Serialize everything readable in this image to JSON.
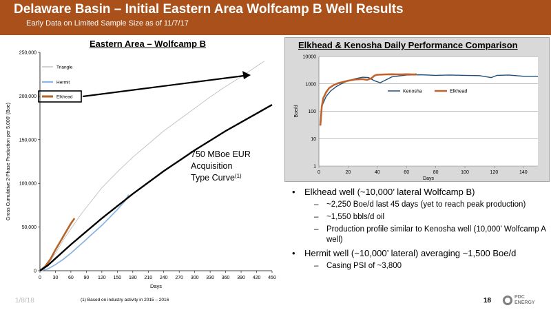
{
  "header": {
    "title": "Delaware Basin – Initial Eastern Area Wolfcamp B Well Results",
    "subtitle": "Early Data on Limited Sample Size as of 11/7/17"
  },
  "left_chart_title": "Eastern Area – Wolfcamp B",
  "right_chart_title": "Elkhead & Kenosha Daily Performance Comparison",
  "type_curve_label": {
    "line1": "750 MBoe EUR",
    "line2": "Acquisition",
    "line3": "Type Curve",
    "sup": "(1)"
  },
  "bullets": [
    {
      "text": "Elkhead well (~10,000’ lateral Wolfcamp B)",
      "sub": [
        "~2,250 Boe/d last 45 days (yet to reach peak production)",
        "~1,550 bbls/d oil",
        "Production profile similar to Kenosha well (10,000’ Wolfcamp A well)"
      ]
    },
    {
      "text": "Hermit well (~10,000’ lateral) averaging ~1,500 Boe/d",
      "sub": [
        "Casing PSI of ~3,800"
      ]
    }
  ],
  "footer": {
    "date": "1/8/18",
    "footnote": "(1)  Based on industry activity in 2015 – 2016",
    "page": "18",
    "logo_line1": "PDC",
    "logo_line2": "ENERGY"
  },
  "chart_data": [
    {
      "type": "line",
      "title": "Eastern Area – Wolfcamp B",
      "xlabel": "Days",
      "ylabel": "Gross Cumulative 2-Phase Production per 5,000’ (Boe)",
      "xlim": [
        0,
        450
      ],
      "ylim": [
        0,
        250000
      ],
      "xticks": [
        0,
        30,
        60,
        90,
        120,
        150,
        180,
        210,
        240,
        270,
        300,
        330,
        360,
        390,
        420,
        450
      ],
      "yticks": [
        0,
        50000,
        100000,
        150000,
        200000,
        250000
      ],
      "ytick_labels": [
        "0",
        "50,000",
        "100,000",
        "150,000",
        "200,000",
        "250,000"
      ],
      "legend": "top-left",
      "series": [
        {
          "name": "Triangle",
          "color": "#bfbfbf",
          "x": [
            0,
            15,
            30,
            45,
            60,
            80,
            100,
            120,
            150,
            180,
            210,
            240,
            270,
            300,
            330,
            360,
            390,
            420,
            435
          ],
          "y": [
            0,
            7000,
            20000,
            35000,
            48000,
            65000,
            80000,
            95000,
            113000,
            130000,
            145000,
            160000,
            173000,
            186000,
            199000,
            211000,
            222000,
            234000,
            240000
          ]
        },
        {
          "name": "Hermit",
          "color": "#8eb4e3",
          "x": [
            0,
            15,
            30,
            45,
            60,
            75,
            90,
            105,
            120,
            135,
            150,
            165,
            172
          ],
          "y": [
            0,
            2000,
            7000,
            13000,
            20000,
            28000,
            36000,
            44000,
            52000,
            61000,
            70000,
            80000,
            87000
          ]
        },
        {
          "name": "Elkhead",
          "color": "#b5652a",
          "x": [
            0,
            10,
            20,
            30,
            40,
            50,
            60,
            67
          ],
          "y": [
            0,
            5000,
            13000,
            24000,
            34000,
            44000,
            54000,
            60000
          ]
        },
        {
          "name": "750 MBoe EUR Acquisition Type Curve",
          "color": "#000000",
          "x": [
            0,
            15,
            30,
            45,
            60,
            90,
            120,
            150,
            180,
            210,
            240,
            270,
            300,
            330,
            360,
            390,
            420,
            450
          ],
          "y": [
            0,
            6000,
            14000,
            22000,
            30000,
            45000,
            60000,
            74000,
            88000,
            101000,
            114000,
            126000,
            138000,
            149000,
            160000,
            170000,
            180000,
            190000
          ]
        }
      ]
    },
    {
      "type": "line",
      "title": "Elkhead & Kenosha Daily Performance Comparison",
      "xlabel": "Days",
      "ylabel": "Boe/d",
      "xlim": [
        0,
        150
      ],
      "ylim": [
        1,
        10000
      ],
      "yscale": "log",
      "xticks": [
        0,
        20,
        40,
        60,
        80,
        100,
        120,
        140
      ],
      "yticks": [
        1,
        10,
        100,
        1000,
        10000
      ],
      "legend": "inside-center",
      "series": [
        {
          "name": "Kenosha",
          "color": "#1f4e79",
          "x": [
            2,
            5,
            8,
            12,
            16,
            20,
            25,
            30,
            34,
            38,
            42,
            46,
            50,
            60,
            70,
            80,
            90,
            100,
            110,
            115,
            118,
            122,
            130,
            140,
            150
          ],
          "y": [
            150,
            350,
            550,
            800,
            1050,
            1300,
            1550,
            1750,
            1700,
            1300,
            1100,
            1400,
            1800,
            2100,
            2150,
            2050,
            2100,
            2050,
            2000,
            1800,
            1700,
            2050,
            2100,
            1900,
            1900
          ]
        },
        {
          "name": "Elkhead",
          "color": "#c0622b",
          "x": [
            1,
            2,
            3,
            5,
            7,
            10,
            13,
            16,
            20,
            25,
            30,
            33,
            36,
            38,
            40,
            45,
            50,
            55,
            60,
            65,
            67
          ],
          "y": [
            30,
            150,
            300,
            500,
            700,
            900,
            1050,
            1150,
            1300,
            1450,
            1500,
            1400,
            1600,
            2000,
            2150,
            2200,
            2250,
            2200,
            2250,
            2200,
            2250
          ]
        }
      ]
    }
  ]
}
